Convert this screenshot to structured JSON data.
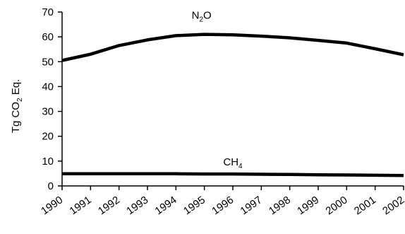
{
  "chart_data": {
    "type": "line",
    "title": "",
    "xlabel": "",
    "ylabel": {
      "base": "Tg CO",
      "sub": "2",
      "rest": " Eq."
    },
    "categories": [
      "1990",
      "1991",
      "1992",
      "1993",
      "1994",
      "1995",
      "1996",
      "1997",
      "1998",
      "1999",
      "2000",
      "2001",
      "2002"
    ],
    "ylim": [
      0,
      70
    ],
    "yticks": [
      0,
      10,
      20,
      30,
      40,
      50,
      60,
      70
    ],
    "grid": false,
    "legend": "none",
    "series": [
      {
        "name": "N2O",
        "label": {
          "base": "N",
          "sub": "2",
          "rest": "O"
        },
        "color": "#000000",
        "values": [
          50.5,
          53.0,
          56.5,
          58.8,
          60.5,
          61.0,
          60.8,
          60.3,
          59.6,
          58.6,
          57.5,
          55.2,
          52.8
        ]
      },
      {
        "name": "CH4",
        "label": {
          "base": "CH",
          "sub": "4",
          "rest": ""
        },
        "color": "#000000",
        "values": [
          4.9,
          4.9,
          4.9,
          4.9,
          4.9,
          4.8,
          4.8,
          4.7,
          4.6,
          4.5,
          4.4,
          4.3,
          4.2
        ]
      }
    ]
  }
}
